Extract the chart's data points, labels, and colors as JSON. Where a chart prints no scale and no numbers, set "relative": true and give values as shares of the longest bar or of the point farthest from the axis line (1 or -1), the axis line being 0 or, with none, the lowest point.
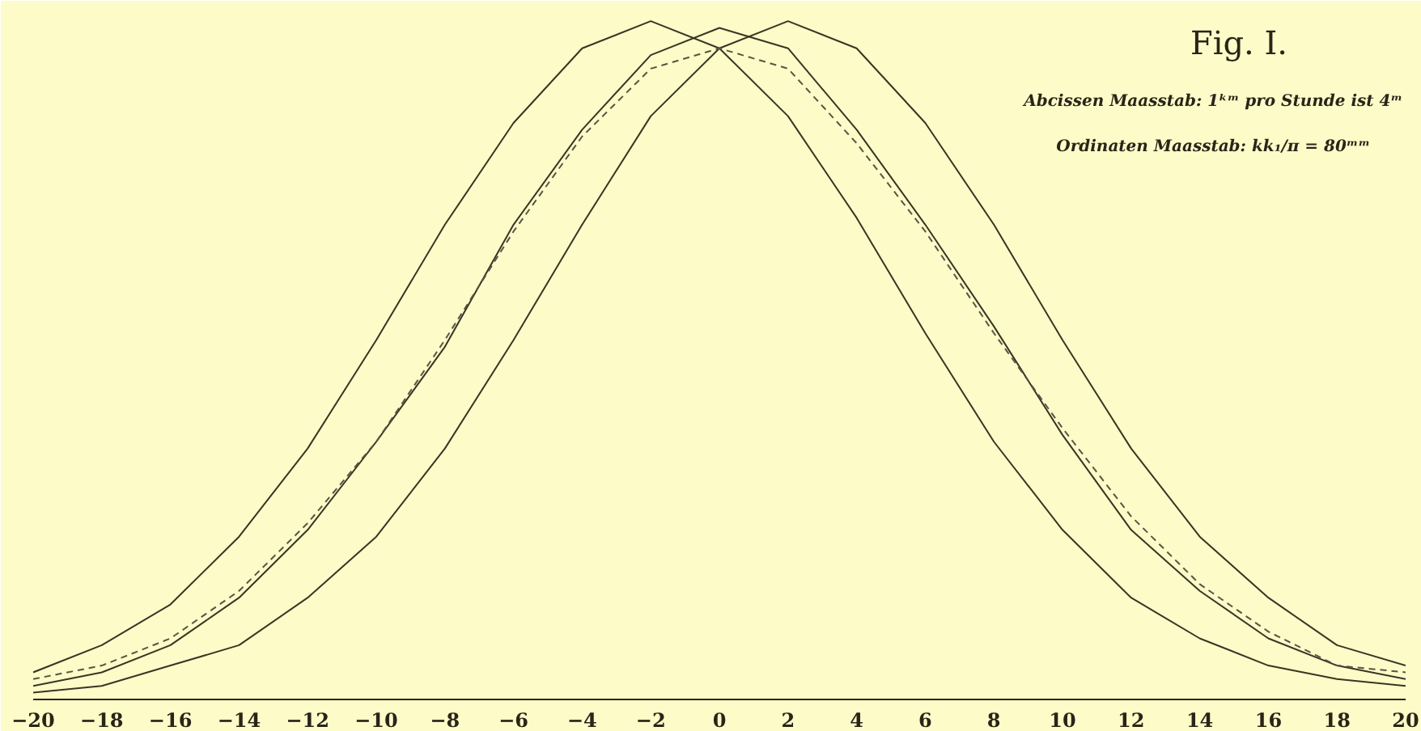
{
  "chart_data": {
    "type": "line",
    "title": "Fig. I.",
    "annotations": [
      "Abcissen Maasstab: 1ᵏᵐ pro Stunde ist 4ᵐ",
      "Ordinaten Maasstab: kk₁/π = 80ᵐᵐ"
    ],
    "x": [
      -20,
      -18,
      -16,
      -14,
      -12,
      -10,
      -8,
      -6,
      -4,
      -2,
      0,
      2,
      4,
      6,
      8,
      10,
      12,
      14,
      16,
      18,
      20
    ],
    "relative": true,
    "xlim": [
      -20,
      20
    ],
    "xticks": [
      -20,
      -18,
      -16,
      -14,
      -12,
      -10,
      -8,
      -6,
      -4,
      -2,
      0,
      2,
      4,
      6,
      8,
      10,
      12,
      14,
      16,
      18,
      20
    ],
    "grid": false,
    "marker": "none",
    "series": [
      {
        "color": "#3a3424",
        "line_style": "solid",
        "values": [
          0.04,
          0.08,
          0.14,
          0.24,
          0.37,
          0.53,
          0.7,
          0.85,
          0.96,
          1,
          0.96,
          0.86,
          0.71,
          0.54,
          0.38,
          0.25,
          0.15,
          0.09,
          0.05,
          0.03,
          0.02
        ]
      },
      {
        "color": "#3a3424",
        "line_style": "solid",
        "values": [
          0.01,
          0.02,
          0.05,
          0.08,
          0.15,
          0.24,
          0.37,
          0.53,
          0.7,
          0.86,
          0.96,
          1,
          0.96,
          0.85,
          0.7,
          0.53,
          0.37,
          0.24,
          0.15,
          0.08,
          0.05
        ]
      },
      {
        "color": "#3a3424",
        "line_style": "solid",
        "values": [
          0.02,
          0.04,
          0.08,
          0.15,
          0.25,
          0.38,
          0.52,
          0.7,
          0.84,
          0.95,
          0.99,
          0.96,
          0.84,
          0.7,
          0.55,
          0.39,
          0.25,
          0.16,
          0.09,
          0.05,
          0.03
        ]
      },
      {
        "color": "#5a5444",
        "line_style": "dashed",
        "values": [
          0.03,
          0.05,
          0.09,
          0.16,
          0.26,
          0.38,
          0.53,
          0.69,
          0.83,
          0.93,
          0.96,
          0.93,
          0.82,
          0.69,
          0.54,
          0.4,
          0.27,
          0.17,
          0.1,
          0.05,
          0.04
        ]
      }
    ]
  }
}
